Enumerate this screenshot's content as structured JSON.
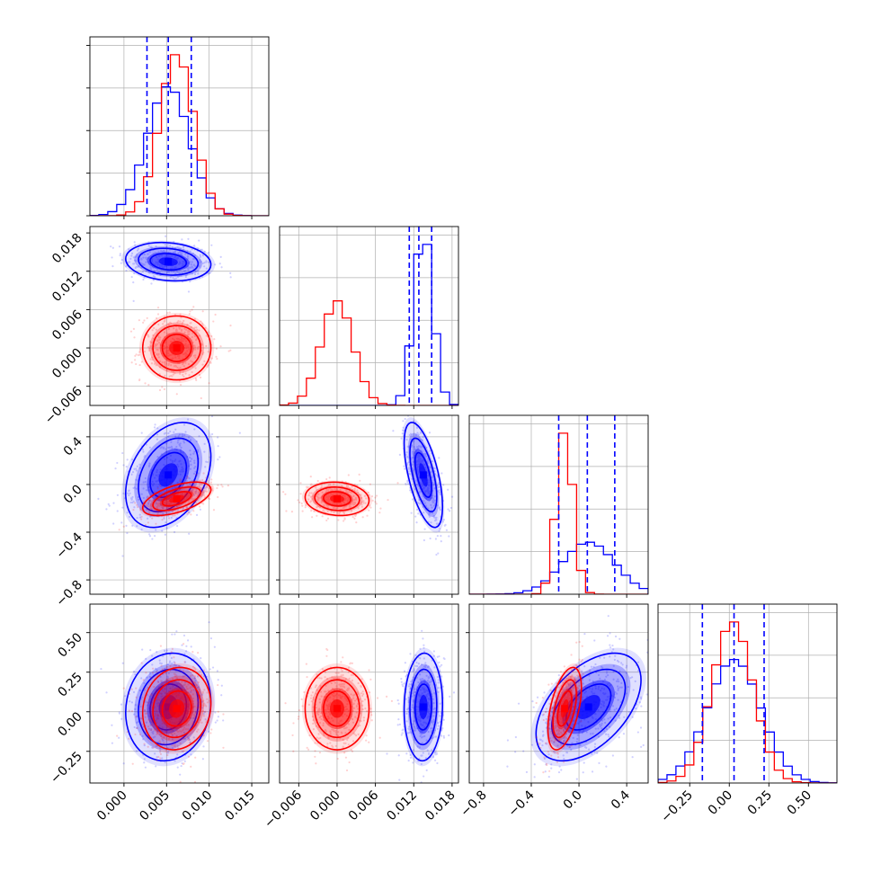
{
  "chart_data": {
    "type": "corner",
    "title": "",
    "parameters": 4,
    "series": [
      {
        "color": "#0000ff",
        "mean": [
          0.0052,
          0.0135,
          0.08,
          0.03
        ],
        "std": [
          0.0025,
          0.0015,
          0.22,
          0.17
        ],
        "corr": [
          [
            1,
            -0.15,
            0.35,
            0.1
          ],
          [
            -0.15,
            1,
            -0.6,
            0.05
          ],
          [
            0.35,
            -0.6,
            1,
            0.5
          ],
          [
            0.1,
            0.05,
            0.5,
            1
          ]
        ]
      },
      {
        "color": "#ff0000",
        "mean": [
          0.0062,
          0.0,
          -0.12,
          0.02
        ],
        "std": [
          0.002,
          0.0025,
          0.07,
          0.13
        ],
        "corr": [
          [
            1,
            0.0,
            0.55,
            0.1
          ],
          [
            0.0,
            1,
            -0.1,
            0.0
          ],
          [
            0.55,
            -0.1,
            1,
            0.5
          ],
          [
            0.1,
            0.0,
            0.5,
            1
          ]
        ]
      }
    ],
    "ranges": [
      [
        -0.004,
        0.017
      ],
      [
        -0.009,
        0.019
      ],
      [
        -0.92,
        0.58
      ],
      [
        -0.45,
        0.68
      ]
    ],
    "quantile_lines": {
      "color": "#0000ff",
      "values": [
        [
          0.0027,
          0.0052,
          0.0079
        ],
        [
          0.0113,
          0.0128,
          0.0148
        ],
        [
          -0.17,
          0.07,
          0.3
        ],
        [
          -0.17,
          0.03,
          0.22
        ]
      ]
    },
    "x_ticks": [
      [
        "0.000",
        "0.005",
        "0.010",
        "0.015"
      ],
      [
        "−0.006",
        "0.000",
        "0.006",
        "0.012",
        "0.018"
      ],
      [
        "−0.8",
        "−0.4",
        "0.0",
        "0.4"
      ],
      [
        "−0.25",
        "0.00",
        "0.25",
        "0.50"
      ]
    ],
    "y_ticks": [
      [],
      [
        "0.018",
        "0.012",
        "0.006",
        "0.000",
        "−0.006"
      ],
      [
        "0.4",
        "0.0",
        "−0.4",
        "−0.8"
      ],
      [
        "0.50",
        "0.25",
        "0.00",
        "−0.25"
      ]
    ],
    "grid": true,
    "contour_levels": 3,
    "hist_bins": 20
  }
}
